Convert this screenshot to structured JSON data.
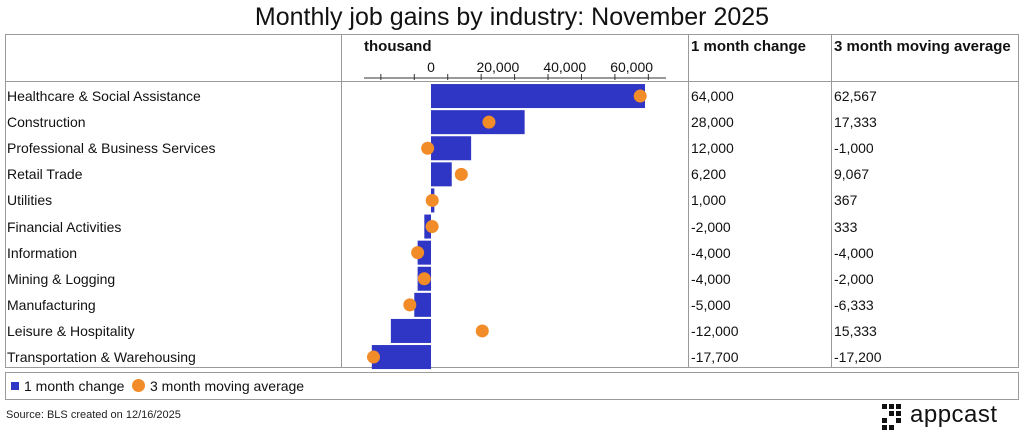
{
  "chart_data": {
    "type": "bar",
    "title": "Monthly job gains by industry: November 2025",
    "unit_label": "thousand",
    "xlim": [
      -20000,
      72000
    ],
    "ticks": [
      0,
      20000,
      40000,
      60000
    ],
    "tick_labels": [
      "0",
      "20,000",
      "40,000",
      "60,000"
    ],
    "column_headers": {
      "one_month": "1 month change",
      "three_month": "3 month moving average"
    },
    "categories": [
      "Healthcare & Social Assistance",
      "Construction",
      "Professional & Business Services",
      "Retail Trade",
      "Utilities",
      "Financial Activities",
      "Information",
      "Mining & Logging",
      "Manufacturing",
      "Leisure & Hospitality",
      "Transportation & Warehousing"
    ],
    "series": [
      {
        "name": "1 month change",
        "mark": "bar",
        "color": "#2f35c4",
        "values": [
          64000,
          28000,
          12000,
          6200,
          1000,
          -2000,
          -4000,
          -4000,
          -5000,
          -12000,
          -17700
        ],
        "labels": [
          "64,000",
          "28,000",
          "12,000",
          "6,200",
          "1,000",
          "-2,000",
          "-4,000",
          "-4,000",
          "-5,000",
          "-12,000",
          "-17,700"
        ]
      },
      {
        "name": "3 month moving average",
        "mark": "dot",
        "color": "#f28c28",
        "values": [
          62567,
          17333,
          -1000,
          9067,
          367,
          333,
          -4000,
          -2000,
          -6333,
          15333,
          -17200
        ],
        "labels": [
          "62,567",
          "17,333",
          "-1,000",
          "9,067",
          "367",
          "333",
          "-4,000",
          "-2,000",
          "-6,333",
          "15,333",
          "-17,200"
        ]
      }
    ],
    "legend_placement": "bottom-left",
    "grid": false
  },
  "footer": {
    "source": "Source: BLS created on 12/16/2025",
    "logo_text": "appcast"
  }
}
